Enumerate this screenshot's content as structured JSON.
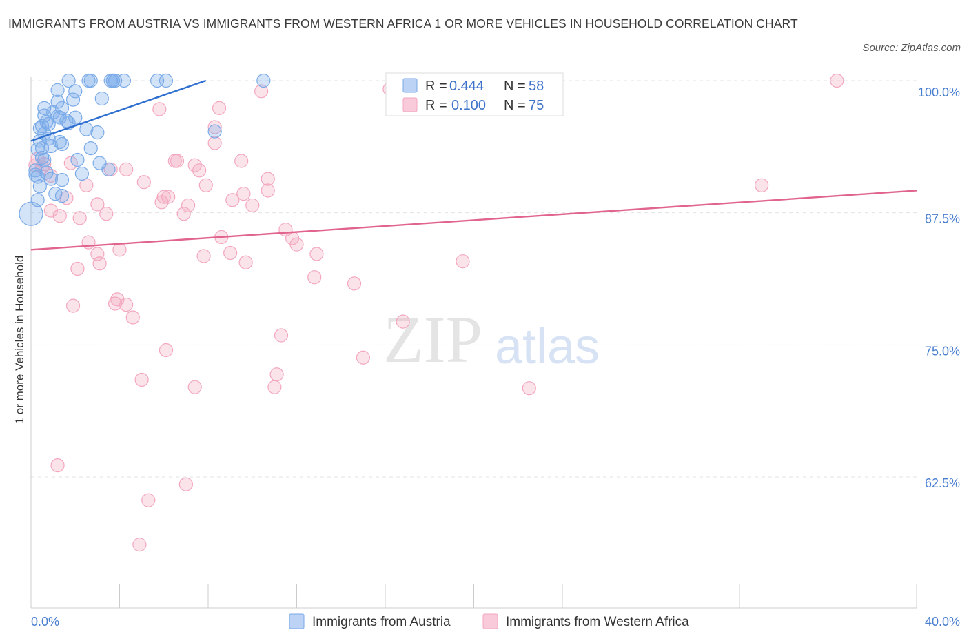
{
  "title": "IMMIGRANTS FROM AUSTRIA VS IMMIGRANTS FROM WESTERN AFRICA 1 OR MORE VEHICLES IN HOUSEHOLD CORRELATION CHART",
  "source": "Source: ZipAtlas.com",
  "watermark": {
    "zip": "ZIP",
    "atlas": "atlas"
  },
  "chart_data": {
    "type": "scatter",
    "ylabel": "1 or more Vehicles in Household",
    "xlim": [
      0,
      40
    ],
    "ylim": [
      50.5,
      100.8
    ],
    "x_tick_labels": [
      {
        "value": 0,
        "label": "0.0%"
      },
      {
        "value": 40,
        "label": "40.0%"
      }
    ],
    "y_tick_labels": [
      {
        "value": 100,
        "label": "100.0%"
      },
      {
        "value": 87.5,
        "label": "87.5%"
      },
      {
        "value": 75,
        "label": "75.0%"
      },
      {
        "value": 62.5,
        "label": "62.5%"
      }
    ],
    "grid": true,
    "legend_position": "top-center",
    "series": [
      {
        "name": "Immigrants from Austria",
        "color": "#7aaae8",
        "line_color": "#2f6fd0",
        "R": "0.444",
        "N": "58",
        "trend": [
          [
            0,
            94.3
          ],
          [
            7.9,
            100.0
          ]
        ],
        "points": [
          [
            1.7,
            100
          ],
          [
            2.6,
            100
          ],
          [
            2.7,
            100
          ],
          [
            3.6,
            100
          ],
          [
            3.7,
            100
          ],
          [
            3.7,
            100
          ],
          [
            3.8,
            100
          ],
          [
            4.2,
            100
          ],
          [
            5.7,
            100
          ],
          [
            6.1,
            100
          ],
          [
            10.5,
            100
          ],
          [
            1.2,
            99.1
          ],
          [
            2.0,
            99.0
          ],
          [
            3.2,
            98.3
          ],
          [
            1.9,
            98.2
          ],
          [
            1.2,
            98.0
          ],
          [
            0.6,
            97.4
          ],
          [
            1.4,
            97.4
          ],
          [
            1.0,
            97.0
          ],
          [
            0.6,
            96.7
          ],
          [
            1.2,
            96.6
          ],
          [
            1.6,
            96.2
          ],
          [
            1.3,
            96.5
          ],
          [
            0.7,
            96.1
          ],
          [
            0.8,
            95.9
          ],
          [
            2.0,
            96.5
          ],
          [
            0.5,
            95.7
          ],
          [
            0.4,
            95.5
          ],
          [
            1.7,
            96.0
          ],
          [
            2.5,
            95.4
          ],
          [
            3.0,
            95.1
          ],
          [
            8.3,
            95.2
          ],
          [
            0.6,
            95.0
          ],
          [
            0.8,
            94.5
          ],
          [
            0.4,
            94.3
          ],
          [
            1.3,
            94.2
          ],
          [
            1.4,
            94.0
          ],
          [
            0.9,
            93.8
          ],
          [
            0.5,
            93.6
          ],
          [
            2.7,
            93.6
          ],
          [
            0.3,
            93.5
          ],
          [
            0.5,
            92.7
          ],
          [
            0.6,
            92.5
          ],
          [
            2.1,
            92.5
          ],
          [
            3.1,
            92.2
          ],
          [
            3.5,
            91.6
          ],
          [
            2.3,
            91.2
          ],
          [
            0.2,
            91.1
          ],
          [
            0.3,
            90.9
          ],
          [
            0.9,
            90.7
          ],
          [
            1.4,
            90.6
          ],
          [
            0.4,
            90.0
          ],
          [
            1.4,
            89.1
          ],
          [
            0.3,
            88.7
          ],
          [
            0.0,
            87.4
          ],
          [
            0.2,
            91.5
          ],
          [
            0.7,
            91.3
          ],
          [
            1.1,
            89.3
          ]
        ]
      },
      {
        "name": "Immigrants from Western Africa",
        "color": "#f3a7bf",
        "line_color": "#e0648e",
        "R": "0.100",
        "N": "75",
        "trend": [
          [
            0,
            84.0
          ],
          [
            40,
            89.6
          ]
        ],
        "points": [
          [
            18.6,
            100
          ],
          [
            36.4,
            100
          ],
          [
            16.2,
            99.2
          ],
          [
            10.4,
            99.0
          ],
          [
            5.8,
            97.3
          ],
          [
            8.5,
            97.4
          ],
          [
            8.3,
            95.6
          ],
          [
            8.3,
            94.1
          ],
          [
            0.3,
            92.6
          ],
          [
            6.5,
            92.4
          ],
          [
            6.6,
            92.4
          ],
          [
            9.5,
            92.4
          ],
          [
            0.6,
            92.1
          ],
          [
            0.2,
            92.0
          ],
          [
            1.8,
            92.2
          ],
          [
            7.4,
            92.0
          ],
          [
            0.5,
            91.8
          ],
          [
            3.6,
            91.6
          ],
          [
            4.3,
            91.6
          ],
          [
            7.6,
            91.5
          ],
          [
            0.9,
            91.0
          ],
          [
            10.7,
            90.7
          ],
          [
            5.1,
            90.4
          ],
          [
            2.5,
            90.1
          ],
          [
            7.9,
            90.1
          ],
          [
            10.7,
            89.6
          ],
          [
            33.0,
            90.1
          ],
          [
            9.6,
            89.3
          ],
          [
            6.0,
            89.0
          ],
          [
            6.2,
            89.0
          ],
          [
            1.6,
            88.9
          ],
          [
            5.9,
            88.5
          ],
          [
            9.1,
            88.7
          ],
          [
            3.0,
            88.3
          ],
          [
            7.1,
            88.2
          ],
          [
            10.0,
            88.2
          ],
          [
            0.9,
            87.7
          ],
          [
            3.4,
            87.4
          ],
          [
            6.9,
            87.4
          ],
          [
            1.3,
            87.2
          ],
          [
            2.2,
            87.0
          ],
          [
            11.5,
            85.9
          ],
          [
            8.6,
            85.2
          ],
          [
            2.6,
            84.7
          ],
          [
            11.8,
            85.1
          ],
          [
            12.0,
            84.5
          ],
          [
            4.0,
            84.0
          ],
          [
            3.0,
            83.6
          ],
          [
            9.0,
            83.7
          ],
          [
            7.8,
            83.4
          ],
          [
            12.9,
            83.6
          ],
          [
            3.1,
            82.7
          ],
          [
            9.7,
            82.8
          ],
          [
            19.5,
            82.9
          ],
          [
            2.1,
            82.2
          ],
          [
            12.8,
            81.4
          ],
          [
            14.6,
            80.8
          ],
          [
            3.9,
            79.3
          ],
          [
            3.8,
            78.9
          ],
          [
            4.3,
            78.8
          ],
          [
            1.9,
            78.7
          ],
          [
            4.6,
            77.6
          ],
          [
            16.8,
            77.2
          ],
          [
            11.3,
            75.9
          ],
          [
            15.0,
            73.8
          ],
          [
            6.1,
            74.5
          ],
          [
            11.1,
            72.2
          ],
          [
            5.0,
            71.7
          ],
          [
            7.4,
            71.0
          ],
          [
            11.0,
            71.0
          ],
          [
            22.5,
            70.9
          ],
          [
            1.2,
            63.6
          ],
          [
            7.0,
            61.8
          ],
          [
            5.3,
            60.3
          ],
          [
            4.9,
            56.1
          ]
        ]
      }
    ]
  }
}
